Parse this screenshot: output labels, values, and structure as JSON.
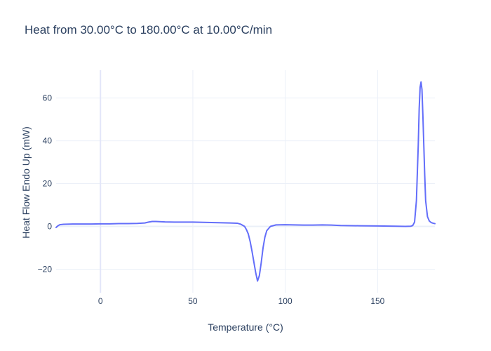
{
  "chart_data": {
    "type": "line",
    "title": "Heat from 30.00°C to 180.00°C at 10.00°C/min",
    "xlabel": "Temperature (°C)",
    "ylabel": "Heat Flow Endo Up (mW)",
    "xlim": [
      -24,
      181
    ],
    "ylim": [
      -31,
      73
    ],
    "xticks": [
      0,
      50,
      100,
      150
    ],
    "yticks": [
      -20,
      0,
      20,
      40,
      60
    ],
    "grid": true,
    "legend": "none",
    "line_color": "#636efa",
    "series": [
      {
        "x": [
          -24,
          -23,
          -22,
          -20,
          -15,
          -10,
          -5,
          0,
          5,
          10,
          15,
          20,
          24,
          26,
          28,
          30,
          35,
          40,
          50,
          60,
          70,
          74,
          76,
          78,
          79,
          80,
          81,
          82,
          83,
          84,
          85,
          86,
          87,
          88,
          89,
          90,
          92,
          95,
          100,
          105,
          110,
          115,
          120,
          125,
          130,
          140,
          150,
          160,
          165,
          168,
          169,
          170,
          171,
          172,
          172.5,
          173,
          173.5,
          174,
          174.5,
          175,
          175.5,
          176,
          177,
          178,
          179,
          180,
          181
        ],
        "y": [
          -0.5,
          0.3,
          0.8,
          1.0,
          1.1,
          1.1,
          1.1,
          1.2,
          1.2,
          1.3,
          1.3,
          1.4,
          1.6,
          2.0,
          2.3,
          2.3,
          2.1,
          2.0,
          2.0,
          1.8,
          1.6,
          1.5,
          1.0,
          0.0,
          -1.5,
          -3.5,
          -7.0,
          -11.5,
          -16.5,
          -21.5,
          -25.5,
          -23.0,
          -17.0,
          -10.0,
          -5.0,
          -2.0,
          0.0,
          0.7,
          0.8,
          0.7,
          0.6,
          0.6,
          0.7,
          0.6,
          0.4,
          0.3,
          0.2,
          0.1,
          0.0,
          0.1,
          0.4,
          2.0,
          12.0,
          38.0,
          55.0,
          65.0,
          67.5,
          64.0,
          52.0,
          38.0,
          24.0,
          12.0,
          4.5,
          2.5,
          1.8,
          1.5,
          1.3
        ]
      }
    ]
  }
}
